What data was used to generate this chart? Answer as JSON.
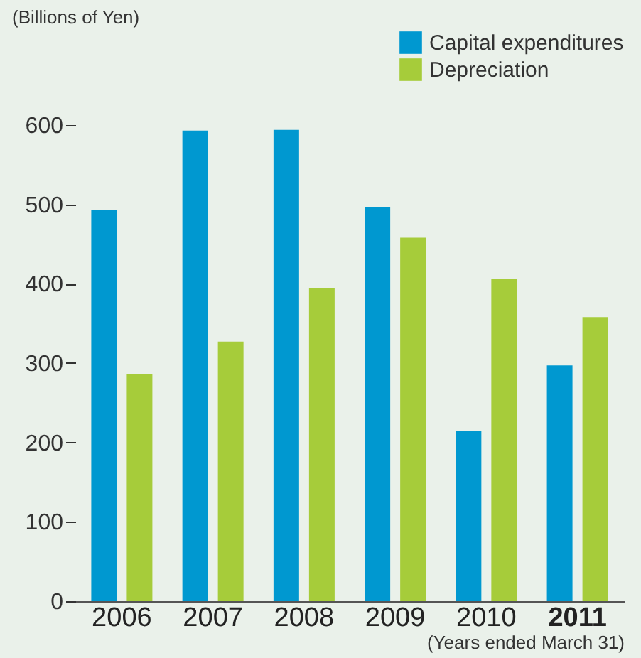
{
  "chart_data": {
    "type": "bar",
    "ylabel": "(Billions of Yen)",
    "xlabel": "(Years ended March 31)",
    "categories": [
      "2006",
      "2007",
      "2008",
      "2009",
      "2010",
      "2011"
    ],
    "series": [
      {
        "name": "Capital expenditures",
        "color": "#0098d0",
        "values": [
          493,
          593,
          594,
          497,
          215,
          297
        ]
      },
      {
        "name": "Depreciation",
        "color": "#a6cc3a",
        "values": [
          286,
          327,
          395,
          458,
          406,
          358
        ]
      }
    ],
    "ylim": [
      0,
      720
    ],
    "yticks": [
      0,
      100,
      200,
      300,
      400,
      500,
      600
    ],
    "grid": false,
    "legend": "top right"
  }
}
